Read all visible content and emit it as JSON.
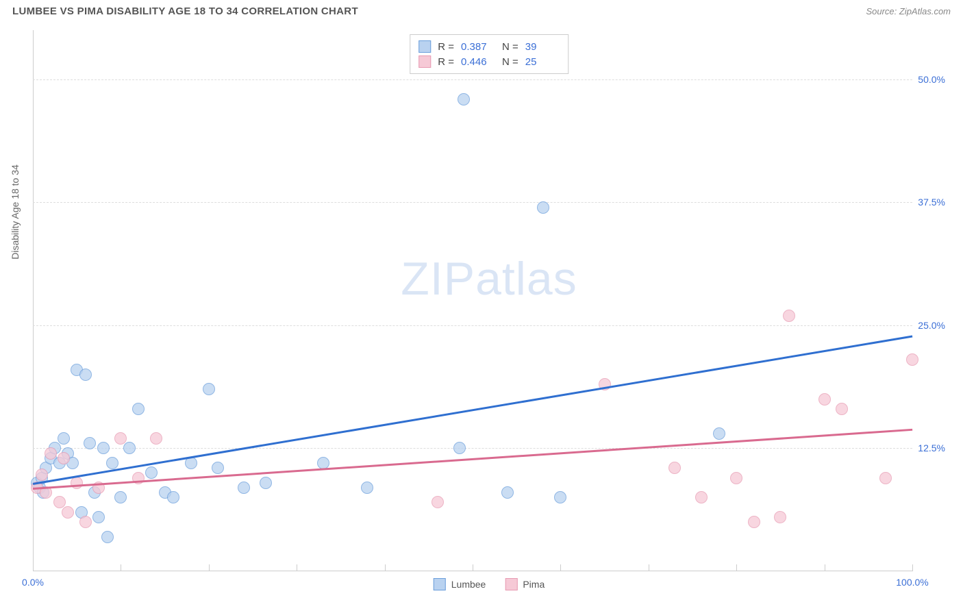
{
  "header": {
    "title": "LUMBEE VS PIMA DISABILITY AGE 18 TO 34 CORRELATION CHART",
    "source": "Source: ZipAtlas.com"
  },
  "chart": {
    "type": "scatter",
    "y_axis_title": "Disability Age 18 to 34",
    "xlim": [
      0,
      100
    ],
    "ylim": [
      0,
      55
    ],
    "x_ticks": [
      0,
      10,
      20,
      30,
      40,
      50,
      60,
      70,
      80,
      90,
      100
    ],
    "x_tick_labels": {
      "0": "0.0%",
      "100": "100.0%"
    },
    "y_gridlines": [
      12.5,
      25.0,
      37.5,
      50.0
    ],
    "y_tick_labels": [
      "12.5%",
      "25.0%",
      "37.5%",
      "50.0%"
    ],
    "background_color": "#ffffff",
    "grid_color": "#dddddd",
    "axis_color": "#cccccc",
    "point_radius": 9,
    "watermark": {
      "text_bold": "ZIP",
      "text_rest": "atlas",
      "color": "#bcd0ee"
    },
    "series": [
      {
        "name": "Lumbee",
        "fill": "#b9d2f0",
        "stroke": "#6a9edb",
        "trend_color": "#2f6fd0",
        "R": "0.387",
        "N": "39",
        "trend": {
          "x1": 0,
          "y1": 9.0,
          "x2": 100,
          "y2": 24.0
        },
        "points": [
          [
            0.5,
            9.0
          ],
          [
            0.8,
            8.5
          ],
          [
            1.0,
            9.5
          ],
          [
            1.2,
            8.0
          ],
          [
            1.5,
            10.5
          ],
          [
            2.0,
            11.5
          ],
          [
            2.5,
            12.5
          ],
          [
            3.0,
            11.0
          ],
          [
            3.5,
            13.5
          ],
          [
            4.0,
            12.0
          ],
          [
            4.5,
            11.0
          ],
          [
            5.0,
            20.5
          ],
          [
            6.0,
            20.0
          ],
          [
            5.5,
            6.0
          ],
          [
            6.5,
            13.0
          ],
          [
            7.0,
            8.0
          ],
          [
            7.5,
            5.5
          ],
          [
            8.0,
            12.5
          ],
          [
            8.5,
            3.5
          ],
          [
            9.0,
            11.0
          ],
          [
            10.0,
            7.5
          ],
          [
            11.0,
            12.5
          ],
          [
            12.0,
            16.5
          ],
          [
            13.5,
            10.0
          ],
          [
            15.0,
            8.0
          ],
          [
            16.0,
            7.5
          ],
          [
            18.0,
            11.0
          ],
          [
            20.0,
            18.5
          ],
          [
            21.0,
            10.5
          ],
          [
            24.0,
            8.5
          ],
          [
            26.5,
            9.0
          ],
          [
            33.0,
            11.0
          ],
          [
            38.0,
            8.5
          ],
          [
            49.0,
            48.0
          ],
          [
            48.5,
            12.5
          ],
          [
            54.0,
            8.0
          ],
          [
            58.0,
            37.0
          ],
          [
            60.0,
            7.5
          ],
          [
            78.0,
            14.0
          ]
        ]
      },
      {
        "name": "Pima",
        "fill": "#f6c9d6",
        "stroke": "#e79ab2",
        "trend_color": "#d96a8f",
        "R": "0.446",
        "N": "25",
        "trend": {
          "x1": 0,
          "y1": 8.5,
          "x2": 100,
          "y2": 14.5
        },
        "points": [
          [
            0.5,
            8.5
          ],
          [
            1.0,
            9.8
          ],
          [
            1.5,
            8.0
          ],
          [
            2.0,
            12.0
          ],
          [
            3.0,
            7.0
          ],
          [
            3.5,
            11.5
          ],
          [
            4.0,
            6.0
          ],
          [
            5.0,
            9.0
          ],
          [
            6.0,
            5.0
          ],
          [
            7.5,
            8.5
          ],
          [
            10.0,
            13.5
          ],
          [
            12.0,
            9.5
          ],
          [
            14.0,
            13.5
          ],
          [
            46.0,
            7.0
          ],
          [
            65.0,
            19.0
          ],
          [
            73.0,
            10.5
          ],
          [
            76.0,
            7.5
          ],
          [
            80.0,
            9.5
          ],
          [
            82.0,
            5.0
          ],
          [
            85.0,
            5.5
          ],
          [
            86.0,
            26.0
          ],
          [
            90.0,
            17.5
          ],
          [
            92.0,
            16.5
          ],
          [
            97.0,
            9.5
          ],
          [
            100.0,
            21.5
          ]
        ]
      }
    ],
    "legend_top_labels": {
      "r_prefix": "R  =",
      "n_prefix": "N  ="
    },
    "legend_bottom": [
      "Lumbee",
      "Pima"
    ]
  }
}
